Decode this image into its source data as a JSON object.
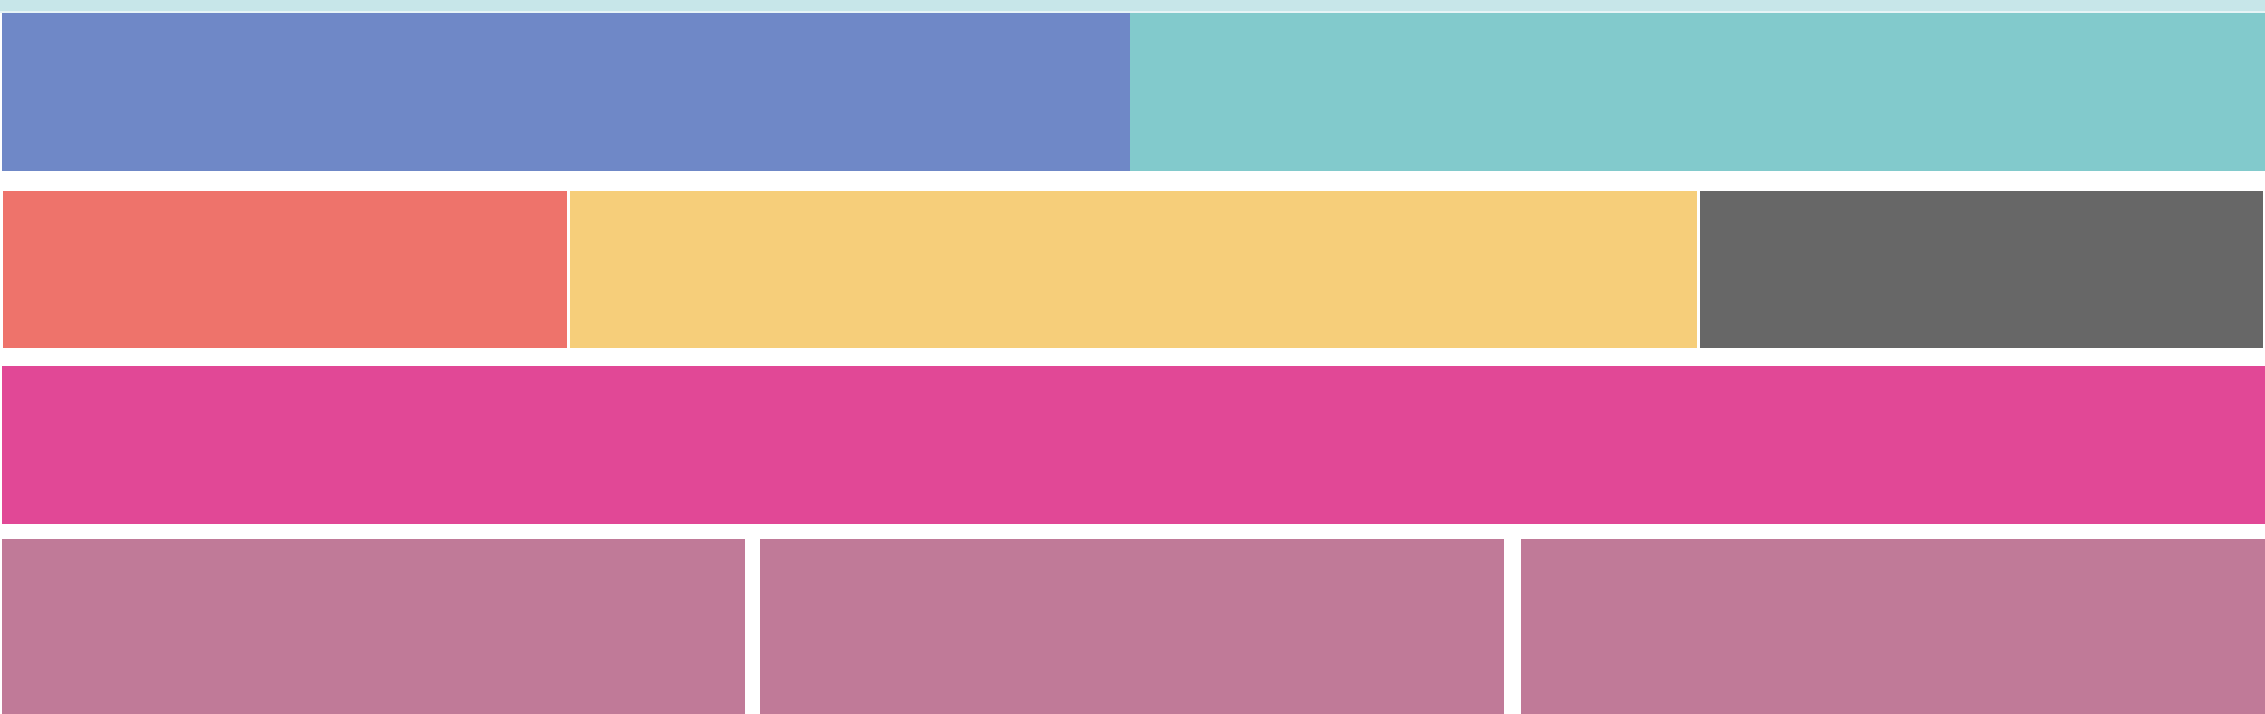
{
  "colors": {
    "top_strip": "#c7e6e9",
    "row1_left": "#6f88c7",
    "row1_right": "#82cacc",
    "row2_left": "#ee736b",
    "row2_center": "#f6ce7a",
    "row2_right": "#676767",
    "row3_full": "#e14896",
    "row4_left": "#c07a98",
    "row4_center": "#c07a98",
    "row4_right": "#c07a98"
  }
}
